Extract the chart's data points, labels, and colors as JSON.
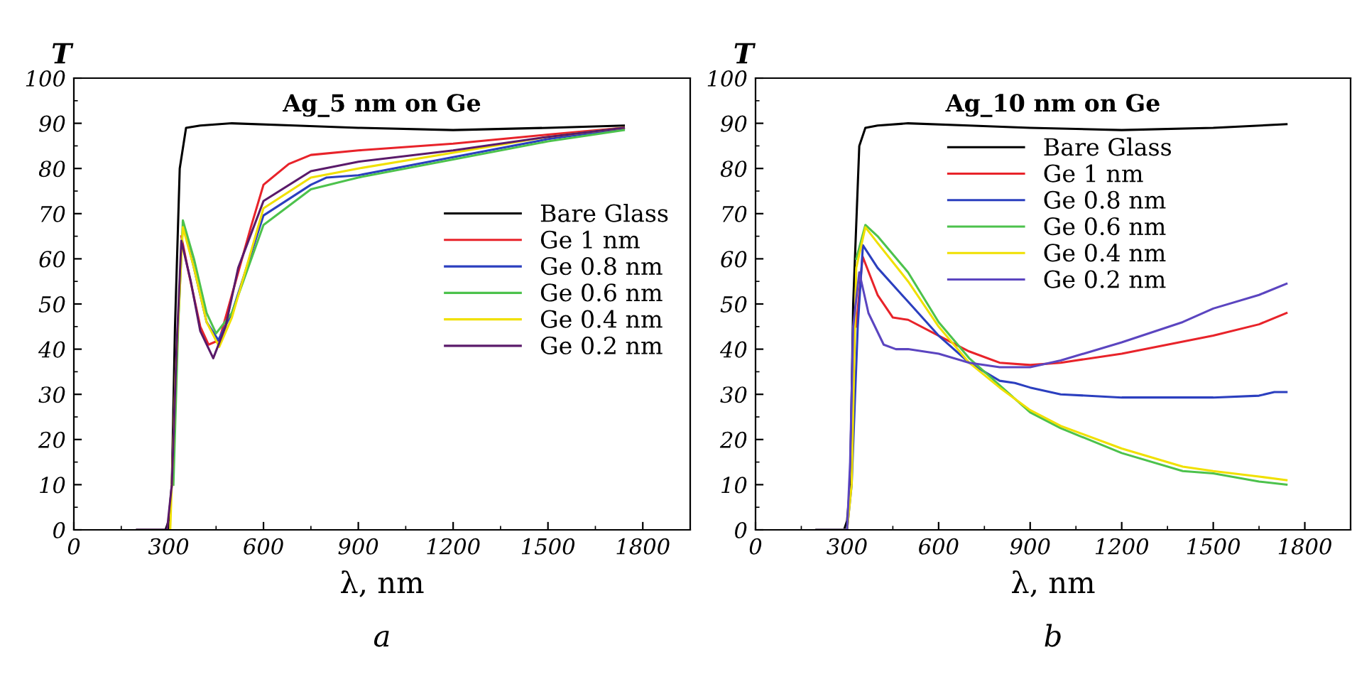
{
  "chart_data": [
    {
      "type": "line",
      "title": "Ag_5 nm on Ge",
      "xlabel": "λ, nm",
      "ylabel": "T",
      "annotations": [
        "a"
      ],
      "xlim": [
        0,
        1950
      ],
      "ylim": [
        0,
        100
      ],
      "xticks": [
        0,
        300,
        600,
        900,
        1200,
        1500,
        1800
      ],
      "yticks": [
        0,
        10,
        20,
        30,
        40,
        50,
        60,
        70,
        80,
        90,
        100
      ],
      "grid": false,
      "legend": "right",
      "marker": "none",
      "line_style": "solid",
      "series": [
        {
          "name": "Bare Glass",
          "color": "#000000",
          "x": [
            200,
            290,
            300,
            310,
            320,
            335,
            355,
            400,
            500,
            700,
            900,
            1200,
            1500,
            1740
          ],
          "values": [
            0,
            0,
            2,
            10,
            45,
            80,
            89,
            89.5,
            90,
            89.5,
            89,
            88.5,
            89,
            89.5
          ]
        },
        {
          "name": "Ge 1 nm",
          "color": "#e8232a",
          "x": [
            340,
            360,
            400,
            426,
            460,
            500,
            560,
            600,
            680,
            750,
            900,
            1200,
            1500,
            1740
          ],
          "values": [
            65,
            58,
            45,
            41,
            42,
            52,
            67,
            76.4,
            81,
            83,
            84,
            85.5,
            87.5,
            89
          ]
        },
        {
          "name": "Ge 0.8 nm",
          "color": "#2b3fbf",
          "x": [
            345,
            380,
            420,
            457,
            500,
            600,
            750,
            800,
            900,
            1200,
            1500,
            1740
          ],
          "values": [
            68,
            58,
            46,
            42,
            48,
            69.6,
            76.4,
            78,
            78.5,
            82.5,
            86.5,
            88.8
          ]
        },
        {
          "name": "Ge 0.6 nm",
          "color": "#4cc24c",
          "x": [
            315,
            330,
            345,
            380,
            420,
            450,
            500,
            600,
            750,
            900,
            1200,
            1500,
            1740
          ],
          "values": [
            10,
            45,
            68.5,
            60,
            48,
            43.5,
            48,
            67.5,
            75.4,
            78,
            82,
            86,
            88.5
          ]
        },
        {
          "name": "Ge 0.4 nm",
          "color": "#f0e000",
          "x": [
            305,
            322,
            345,
            380,
            420,
            460,
            500,
            600,
            750,
            900,
            1200,
            1500,
            1740
          ],
          "values": [
            0,
            35,
            67,
            58,
            46,
            40.5,
            47,
            71.2,
            78,
            80,
            83.5,
            87,
            89
          ]
        },
        {
          "name": "Ge 0.2 nm",
          "color": "#5a1a6a",
          "x": [
            200,
            295,
            310,
            325,
            340,
            370,
            400,
            441,
            480,
            520,
            600,
            750,
            900,
            1200,
            1500,
            1740
          ],
          "values": [
            0,
            0,
            10,
            40,
            64,
            55,
            44,
            38,
            45,
            58,
            72.8,
            79.4,
            81.5,
            84,
            87,
            89
          ]
        }
      ]
    },
    {
      "type": "line",
      "title": "Ag_10 nm on Ge",
      "xlabel": "λ, nm",
      "ylabel": "T",
      "annotations": [
        "b"
      ],
      "xlim": [
        0,
        1950
      ],
      "ylim": [
        0,
        100
      ],
      "xticks": [
        0,
        300,
        600,
        900,
        1200,
        1500,
        1800
      ],
      "yticks": [
        0,
        10,
        20,
        30,
        40,
        50,
        60,
        70,
        80,
        90,
        100
      ],
      "grid": false,
      "legend": "top",
      "marker": "none",
      "line_style": "solid",
      "series": [
        {
          "name": "Bare Glass",
          "color": "#000000",
          "x": [
            200,
            290,
            300,
            310,
            320,
            340,
            360,
            400,
            500,
            700,
            900,
            1200,
            1500,
            1740
          ],
          "values": [
            0,
            0,
            2,
            10,
            50,
            85,
            89,
            89.5,
            90,
            89.5,
            89,
            88.5,
            89,
            89.8
          ]
        },
        {
          "name": "Ge 1 nm",
          "color": "#e8232a",
          "x": [
            330,
            351,
            400,
            450,
            500,
            600,
            700,
            800,
            900,
            1000,
            1200,
            1500,
            1650,
            1740
          ],
          "values": [
            45,
            60.5,
            52,
            47,
            46.5,
            43,
            39.5,
            37,
            36.5,
            37,
            39,
            43,
            45.5,
            48
          ]
        },
        {
          "name": "Ge 0.8 nm",
          "color": "#2b3fbf",
          "x": [
            200,
            300,
            315,
            335,
            352,
            400,
            500,
            600,
            700,
            800,
            850,
            900,
            1000,
            1200,
            1500,
            1650,
            1700,
            1740
          ],
          "values": [
            0,
            0,
            10,
            45,
            63,
            58,
            50.5,
            43,
            37,
            33,
            32.5,
            31.5,
            30,
            29.3,
            29.3,
            29.7,
            30.5,
            30.5
          ]
        },
        {
          "name": "Ge 0.6 nm",
          "color": "#4cc24c",
          "x": [
            330,
            360,
            400,
            500,
            600,
            700,
            800,
            900,
            1000,
            1200,
            1400,
            1500,
            1650,
            1740
          ],
          "values": [
            60,
            67.5,
            65,
            57,
            46,
            38,
            32,
            26,
            22.5,
            17,
            13,
            12.5,
            10.7,
            10
          ]
        },
        {
          "name": "Ge 0.4 nm",
          "color": "#f0e000",
          "x": [
            200,
            300,
            315,
            330,
            360,
            400,
            500,
            600,
            700,
            800,
            900,
            1000,
            1200,
            1400,
            1500,
            1650,
            1740
          ],
          "values": [
            0,
            0,
            10,
            58,
            67,
            63.5,
            55,
            45,
            37,
            31.5,
            26.5,
            23,
            18,
            14,
            13,
            11.8,
            11
          ]
        },
        {
          "name": "Ge 0.2 nm",
          "color": "#5b45c0",
          "x": [
            200,
            300,
            310,
            320,
            340,
            370,
            420,
            460,
            500,
            600,
            700,
            800,
            850,
            900,
            1000,
            1200,
            1400,
            1500,
            1650,
            1740
          ],
          "values": [
            0,
            0,
            15,
            45,
            57,
            48,
            41,
            40,
            40,
            39,
            37,
            36,
            36,
            36,
            37.5,
            41.5,
            46,
            49,
            52,
            54.5
          ]
        }
      ]
    }
  ]
}
